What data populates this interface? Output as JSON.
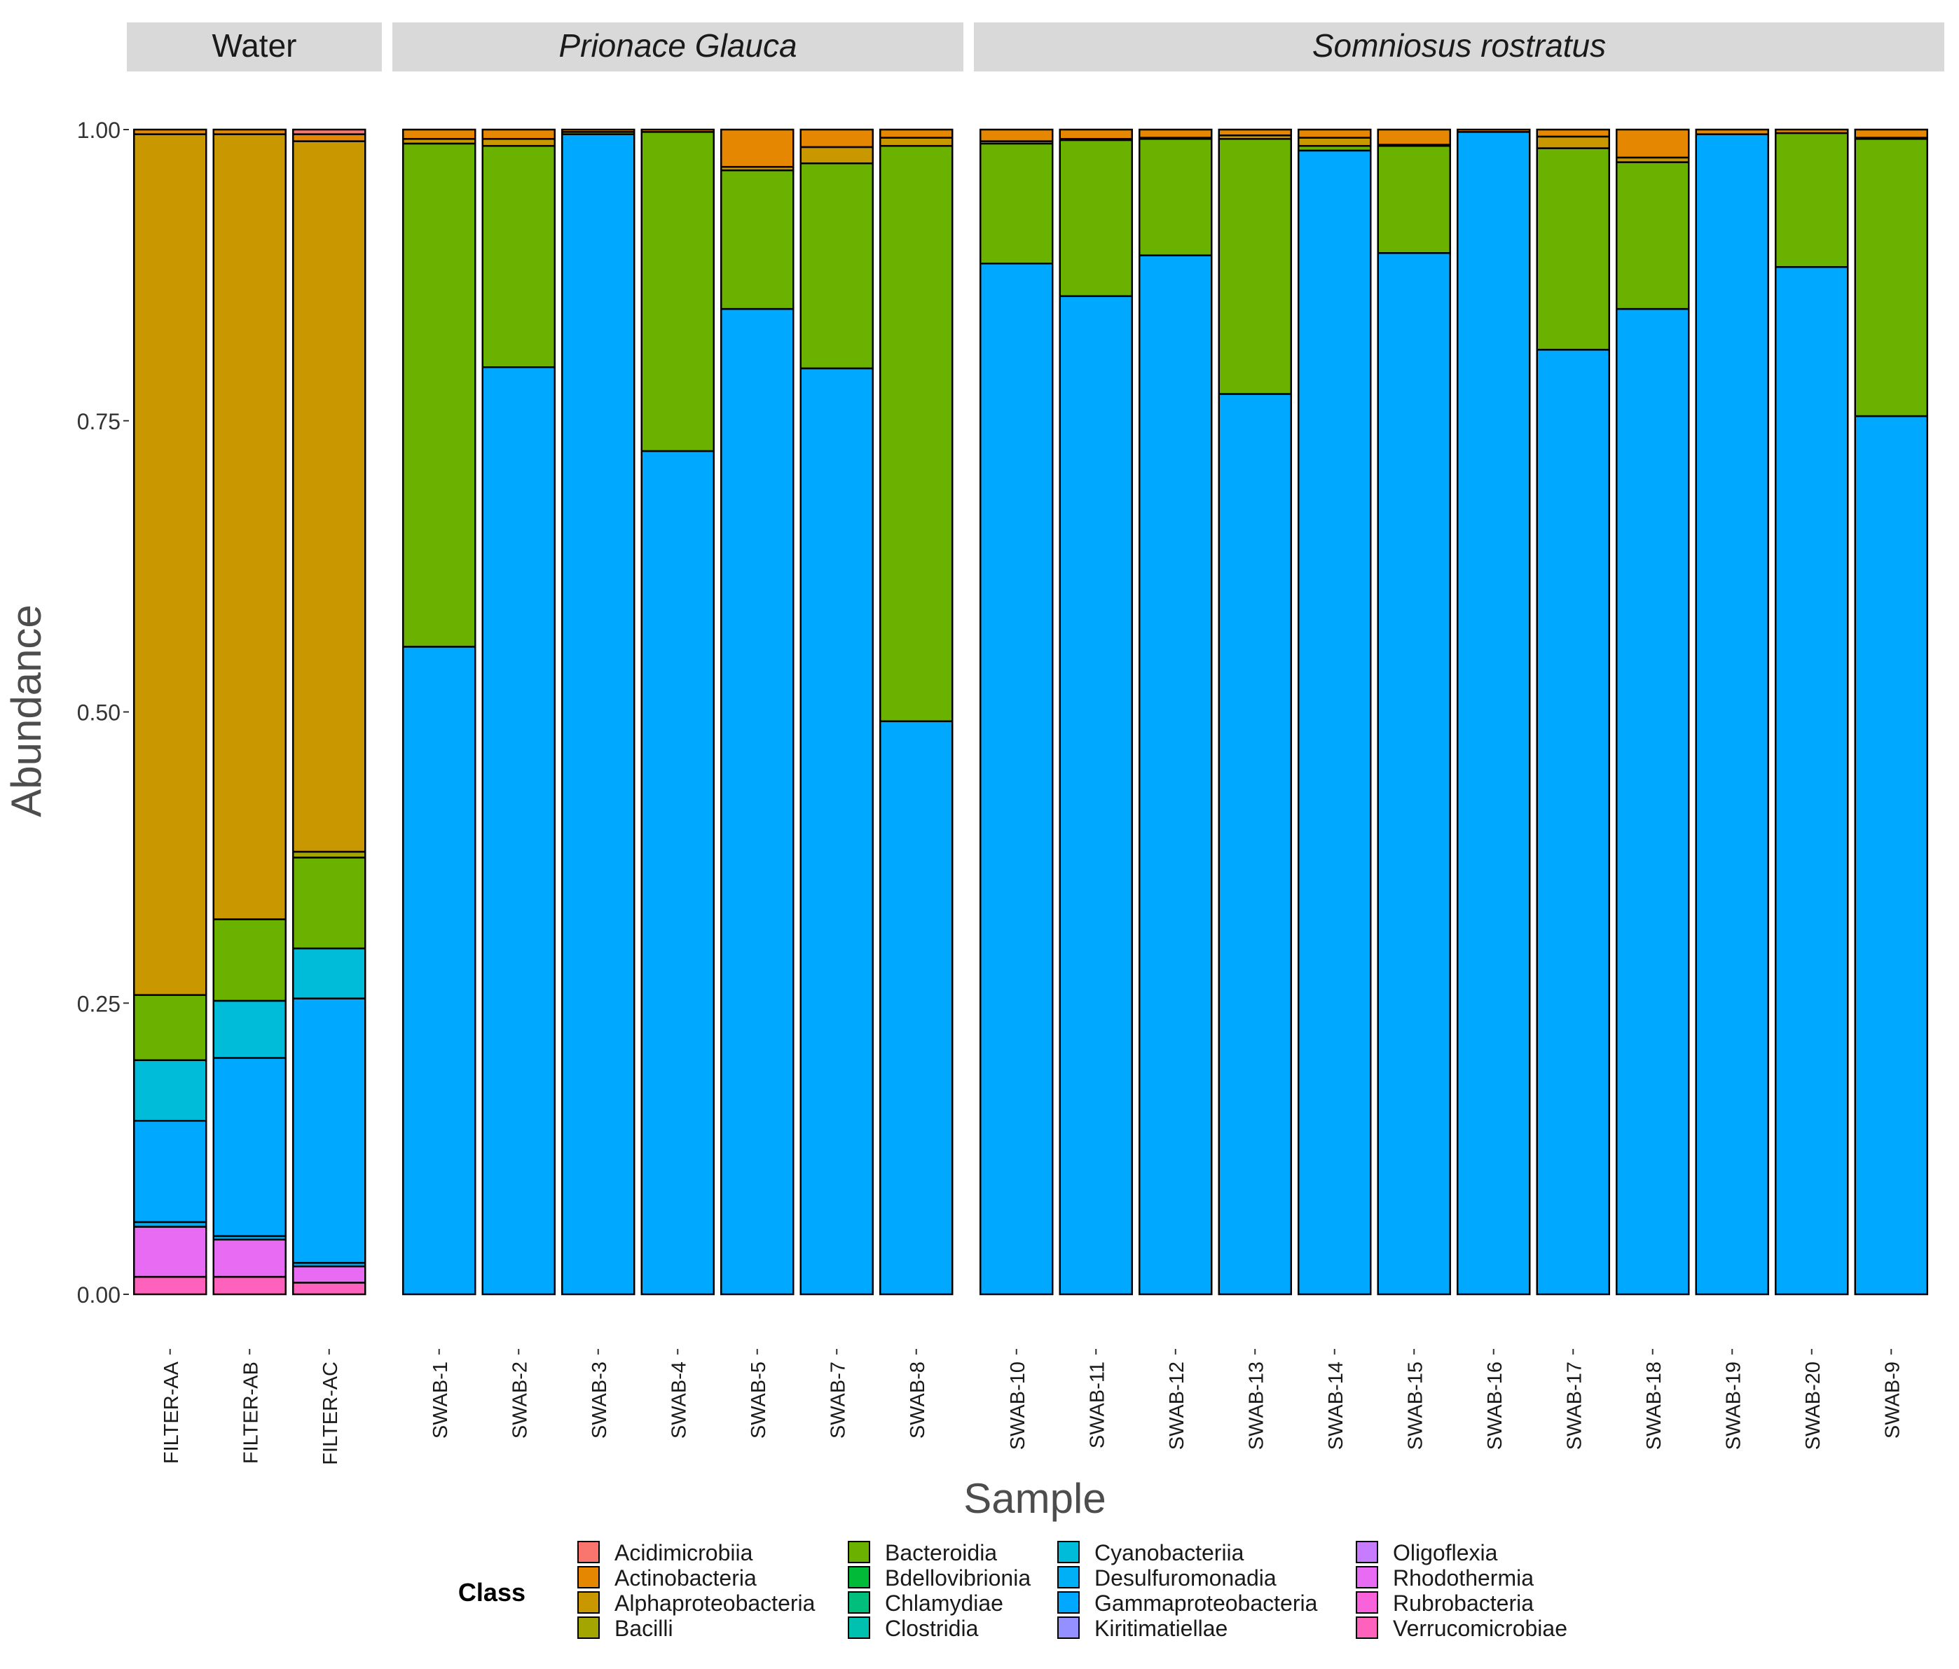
{
  "chart_data": {
    "type": "bar",
    "stacked": true,
    "xlabel": "Sample",
    "ylabel": "Abundance",
    "ylim": [
      0,
      1
    ],
    "yticks": [
      "0.00",
      "0.25",
      "0.50",
      "0.75",
      "1.00"
    ],
    "legend_title": "Class",
    "legend_position": "bottom",
    "classes": [
      {
        "name": "Acidimicrobiia",
        "color": "#F8766D"
      },
      {
        "name": "Actinobacteria",
        "color": "#E58700"
      },
      {
        "name": "Alphaproteobacteria",
        "color": "#C99800"
      },
      {
        "name": "Bacilli",
        "color": "#A3A500"
      },
      {
        "name": "Bacteroidia",
        "color": "#6BB100"
      },
      {
        "name": "Bdellovibrionia",
        "color": "#00BA38"
      },
      {
        "name": "Chlamydiae",
        "color": "#00BF7D"
      },
      {
        "name": "Clostridia",
        "color": "#00C0AF"
      },
      {
        "name": "Cyanobacteriia",
        "color": "#00BCD8"
      },
      {
        "name": "Desulfuromonadia",
        "color": "#00B0F6"
      },
      {
        "name": "Gammaproteobacteria",
        "color": "#00A9FF"
      },
      {
        "name": "Kiritimatiellae",
        "color": "#9590FF"
      },
      {
        "name": "Oligoflexia",
        "color": "#C77CFF"
      },
      {
        "name": "Rhodothermia",
        "color": "#E76BF3"
      },
      {
        "name": "Rubrobacteria",
        "color": "#FA62DB"
      },
      {
        "name": "Verrucomicrobiae",
        "color": "#FF62BC"
      }
    ],
    "facets": [
      {
        "label": "Water",
        "italic": false,
        "samples": [
          {
            "name": "FILTER-AA",
            "stack": [
              {
                "class": "Verrucomicrobiae",
                "value": 0.015
              },
              {
                "class": "Rhodothermia",
                "value": 0.043
              },
              {
                "class": "Desulfuromonadia",
                "value": 0.004
              },
              {
                "class": "Gammaproteobacteria",
                "value": 0.087
              },
              {
                "class": "Cyanobacteriia",
                "value": 0.052
              },
              {
                "class": "Bacteroidia",
                "value": 0.056
              },
              {
                "class": "Alphaproteobacteria",
                "value": 0.739
              },
              {
                "class": "Actinobacteria",
                "value": 0.004
              }
            ]
          },
          {
            "name": "FILTER-AB",
            "stack": [
              {
                "class": "Verrucomicrobiae",
                "value": 0.015
              },
              {
                "class": "Rhodothermia",
                "value": 0.032
              },
              {
                "class": "Desulfuromonadia",
                "value": 0.003
              },
              {
                "class": "Gammaproteobacteria",
                "value": 0.153
              },
              {
                "class": "Cyanobacteriia",
                "value": 0.049
              },
              {
                "class": "Bacteroidia",
                "value": 0.07
              },
              {
                "class": "Alphaproteobacteria",
                "value": 0.674
              },
              {
                "class": "Actinobacteria",
                "value": 0.004
              }
            ]
          },
          {
            "name": "FILTER-AC",
            "stack": [
              {
                "class": "Verrucomicrobiae",
                "value": 0.01
              },
              {
                "class": "Rhodothermia",
                "value": 0.014
              },
              {
                "class": "Desulfuromonadia",
                "value": 0.003
              },
              {
                "class": "Gammaproteobacteria",
                "value": 0.227
              },
              {
                "class": "Cyanobacteriia",
                "value": 0.043
              },
              {
                "class": "Bacteroidia",
                "value": 0.078
              },
              {
                "class": "Bacilli",
                "value": 0.005
              },
              {
                "class": "Alphaproteobacteria",
                "value": 0.61
              },
              {
                "class": "Actinobacteria",
                "value": 0.006
              },
              {
                "class": "Acidimicrobiia",
                "value": 0.004
              }
            ]
          }
        ]
      },
      {
        "label": "Prionace Glauca",
        "italic": true,
        "samples": [
          {
            "name": "SWAB-1",
            "stack": [
              {
                "class": "Gammaproteobacteria",
                "value": 0.556
              },
              {
                "class": "Bacteroidia",
                "value": 0.432
              },
              {
                "class": "Alphaproteobacteria",
                "value": 0.004
              },
              {
                "class": "Actinobacteria",
                "value": 0.008
              }
            ]
          },
          {
            "name": "SWAB-2",
            "stack": [
              {
                "class": "Gammaproteobacteria",
                "value": 0.796
              },
              {
                "class": "Bacteroidia",
                "value": 0.19
              },
              {
                "class": "Alphaproteobacteria",
                "value": 0.006
              },
              {
                "class": "Actinobacteria",
                "value": 0.008
              }
            ]
          },
          {
            "name": "SWAB-3",
            "stack": [
              {
                "class": "Gammaproteobacteria",
                "value": 0.996
              },
              {
                "class": "Bacteroidia",
                "value": 0.002
              },
              {
                "class": "Actinobacteria",
                "value": 0.002
              }
            ]
          },
          {
            "name": "SWAB-4",
            "stack": [
              {
                "class": "Gammaproteobacteria",
                "value": 0.724
              },
              {
                "class": "Bacteroidia",
                "value": 0.274
              },
              {
                "class": "Actinobacteria",
                "value": 0.002
              }
            ]
          },
          {
            "name": "SWAB-5",
            "stack": [
              {
                "class": "Gammaproteobacteria",
                "value": 0.846
              },
              {
                "class": "Bacteroidia",
                "value": 0.119
              },
              {
                "class": "Alphaproteobacteria",
                "value": 0.003
              },
              {
                "class": "Actinobacteria",
                "value": 0.032
              }
            ]
          },
          {
            "name": "SWAB-7",
            "stack": [
              {
                "class": "Gammaproteobacteria",
                "value": 0.795
              },
              {
                "class": "Bacteroidia",
                "value": 0.176
              },
              {
                "class": "Alphaproteobacteria",
                "value": 0.014
              },
              {
                "class": "Actinobacteria",
                "value": 0.015
              }
            ]
          },
          {
            "name": "SWAB-8",
            "stack": [
              {
                "class": "Gammaproteobacteria",
                "value": 0.492
              },
              {
                "class": "Bacteroidia",
                "value": 0.494
              },
              {
                "class": "Alphaproteobacteria",
                "value": 0.007
              },
              {
                "class": "Actinobacteria",
                "value": 0.007
              }
            ]
          }
        ]
      },
      {
        "label": "Somniosus rostratus",
        "italic": true,
        "samples": [
          {
            "name": "SWAB-10",
            "stack": [
              {
                "class": "Gammaproteobacteria",
                "value": 0.885
              },
              {
                "class": "Bacteroidia",
                "value": 0.103
              },
              {
                "class": "Alphaproteobacteria",
                "value": 0.002
              },
              {
                "class": "Actinobacteria",
                "value": 0.01
              }
            ]
          },
          {
            "name": "SWAB-11",
            "stack": [
              {
                "class": "Gammaproteobacteria",
                "value": 0.857
              },
              {
                "class": "Bacteroidia",
                "value": 0.134
              },
              {
                "class": "Alphaproteobacteria",
                "value": 0.001
              },
              {
                "class": "Actinobacteria",
                "value": 0.008
              }
            ]
          },
          {
            "name": "SWAB-12",
            "stack": [
              {
                "class": "Gammaproteobacteria",
                "value": 0.892
              },
              {
                "class": "Bacteroidia",
                "value": 0.1
              },
              {
                "class": "Alphaproteobacteria",
                "value": 0.001
              },
              {
                "class": "Actinobacteria",
                "value": 0.007
              }
            ]
          },
          {
            "name": "SWAB-13",
            "stack": [
              {
                "class": "Gammaproteobacteria",
                "value": 0.773
              },
              {
                "class": "Bacteroidia",
                "value": 0.219
              },
              {
                "class": "Alphaproteobacteria",
                "value": 0.003
              },
              {
                "class": "Actinobacteria",
                "value": 0.005
              }
            ]
          },
          {
            "name": "SWAB-14",
            "stack": [
              {
                "class": "Gammaproteobacteria",
                "value": 0.982
              },
              {
                "class": "Bacteroidia",
                "value": 0.004
              },
              {
                "class": "Alphaproteobacteria",
                "value": 0.007
              },
              {
                "class": "Actinobacteria",
                "value": 0.007
              }
            ]
          },
          {
            "name": "SWAB-15",
            "stack": [
              {
                "class": "Gammaproteobacteria",
                "value": 0.894
              },
              {
                "class": "Bacteroidia",
                "value": 0.092
              },
              {
                "class": "Alphaproteobacteria",
                "value": 0.001
              },
              {
                "class": "Actinobacteria",
                "value": 0.013
              }
            ]
          },
          {
            "name": "SWAB-16",
            "stack": [
              {
                "class": "Gammaproteobacteria",
                "value": 0.998
              },
              {
                "class": "Actinobacteria",
                "value": 0.002
              }
            ]
          },
          {
            "name": "SWAB-17",
            "stack": [
              {
                "class": "Gammaproteobacteria",
                "value": 0.811
              },
              {
                "class": "Bacteroidia",
                "value": 0.173
              },
              {
                "class": "Alphaproteobacteria",
                "value": 0.01
              },
              {
                "class": "Actinobacteria",
                "value": 0.006
              }
            ]
          },
          {
            "name": "SWAB-18",
            "stack": [
              {
                "class": "Gammaproteobacteria",
                "value": 0.846
              },
              {
                "class": "Bacteroidia",
                "value": 0.126
              },
              {
                "class": "Alphaproteobacteria",
                "value": 0.004
              },
              {
                "class": "Actinobacteria",
                "value": 0.024
              }
            ]
          },
          {
            "name": "SWAB-19",
            "stack": [
              {
                "class": "Gammaproteobacteria",
                "value": 0.996
              },
              {
                "class": "Actinobacteria",
                "value": 0.004
              }
            ]
          },
          {
            "name": "SWAB-20",
            "stack": [
              {
                "class": "Gammaproteobacteria",
                "value": 0.882
              },
              {
                "class": "Bacteroidia",
                "value": 0.115
              },
              {
                "class": "Actinobacteria",
                "value": 0.003
              }
            ]
          },
          {
            "name": "SWAB-9",
            "stack": [
              {
                "class": "Gammaproteobacteria",
                "value": 0.754
              },
              {
                "class": "Bacteroidia",
                "value": 0.238
              },
              {
                "class": "Alphaproteobacteria",
                "value": 0.001
              },
              {
                "class": "Actinobacteria",
                "value": 0.007
              }
            ]
          }
        ]
      }
    ]
  }
}
